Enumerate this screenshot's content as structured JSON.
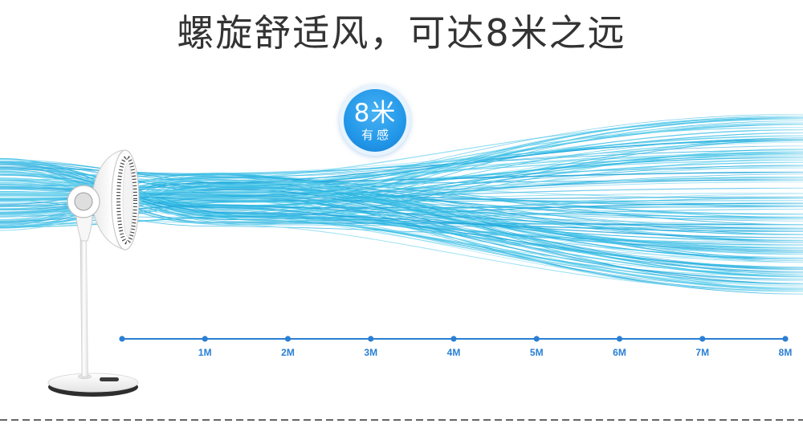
{
  "title": "螺旋舒适风，可达8米之远",
  "badge": {
    "value": "8米",
    "caption": "有感"
  },
  "scale": {
    "labels": [
      "1M",
      "2M",
      "3M",
      "4M",
      "5M",
      "6M",
      "7M",
      "8M"
    ]
  },
  "colors": {
    "title": "#333333",
    "accent": "#2a7fd4",
    "badge": "#2196e8",
    "divider": "#333333",
    "airflow": [
      "#2fb6e2",
      "#48c6ea",
      "#1fa2d9",
      "#6fd4ee",
      "#35bde3",
      "#8adcf0",
      "#27aede"
    ]
  }
}
